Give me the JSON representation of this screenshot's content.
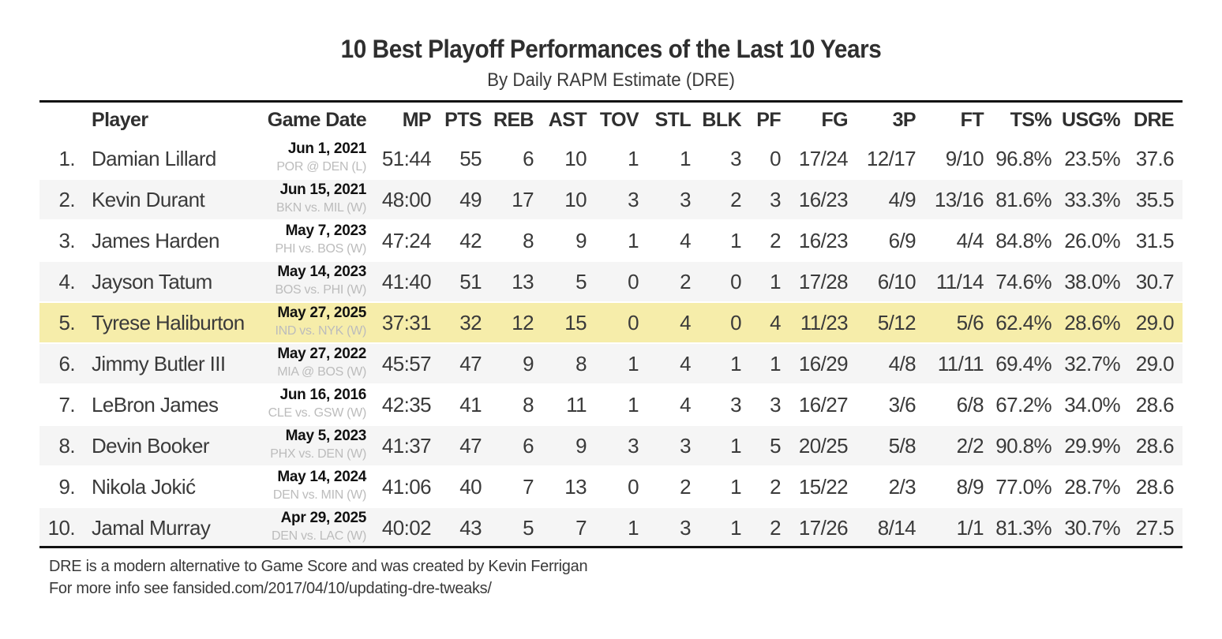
{
  "title": "10 Best Playoff Performances of the Last 10 Years",
  "subtitle": "By Daily RAPM Estimate (DRE)",
  "columns": {
    "player": "Player",
    "game_date": "Game Date",
    "mp": "MP",
    "pts": "PTS",
    "reb": "REB",
    "ast": "AST",
    "tov": "TOV",
    "stl": "STL",
    "blk": "BLK",
    "pf": "PF",
    "fg": "FG",
    "threep": "3P",
    "ft": "FT",
    "ts": "TS%",
    "usg": "USG%",
    "dre": "DRE"
  },
  "colors": {
    "highlight": "#f6edaa",
    "stripe": "#f5f5f5",
    "rule": "#111111",
    "matchup_text": "#bcbcbc"
  },
  "chart_data": {
    "type": "table",
    "title": "10 Best Playoff Performances of the Last 10 Years",
    "subtitle": "By Daily RAPM Estimate (DRE)",
    "highlighted_row": 5,
    "rows": [
      {
        "rank": "1.",
        "player": "Damian Lillard",
        "date": "Jun 1, 2021",
        "matchup": "POR @ DEN (L)",
        "mp": "51:44",
        "pts": "55",
        "reb": "6",
        "ast": "10",
        "tov": "1",
        "stl": "1",
        "blk": "3",
        "pf": "0",
        "fg": "17/24",
        "threep": "12/17",
        "ft": "9/10",
        "ts": "96.8%",
        "usg": "23.5%",
        "dre": "37.6"
      },
      {
        "rank": "2.",
        "player": "Kevin Durant",
        "date": "Jun 15, 2021",
        "matchup": "BKN vs. MIL (W)",
        "mp": "48:00",
        "pts": "49",
        "reb": "17",
        "ast": "10",
        "tov": "3",
        "stl": "3",
        "blk": "2",
        "pf": "3",
        "fg": "16/23",
        "threep": "4/9",
        "ft": "13/16",
        "ts": "81.6%",
        "usg": "33.3%",
        "dre": "35.5"
      },
      {
        "rank": "3.",
        "player": "James Harden",
        "date": "May 7, 2023",
        "matchup": "PHI vs. BOS (W)",
        "mp": "47:24",
        "pts": "42",
        "reb": "8",
        "ast": "9",
        "tov": "1",
        "stl": "4",
        "blk": "1",
        "pf": "2",
        "fg": "16/23",
        "threep": "6/9",
        "ft": "4/4",
        "ts": "84.8%",
        "usg": "26.0%",
        "dre": "31.5"
      },
      {
        "rank": "4.",
        "player": "Jayson Tatum",
        "date": "May 14, 2023",
        "matchup": "BOS vs. PHI (W)",
        "mp": "41:40",
        "pts": "51",
        "reb": "13",
        "ast": "5",
        "tov": "0",
        "stl": "2",
        "blk": "0",
        "pf": "1",
        "fg": "17/28",
        "threep": "6/10",
        "ft": "11/14",
        "ts": "74.6%",
        "usg": "38.0%",
        "dre": "30.7"
      },
      {
        "rank": "5.",
        "player": "Tyrese Haliburton",
        "date": "May 27, 2025",
        "matchup": "IND vs. NYK (W)",
        "mp": "37:31",
        "pts": "32",
        "reb": "12",
        "ast": "15",
        "tov": "0",
        "stl": "4",
        "blk": "0",
        "pf": "4",
        "fg": "11/23",
        "threep": "5/12",
        "ft": "5/6",
        "ts": "62.4%",
        "usg": "28.6%",
        "dre": "29.0"
      },
      {
        "rank": "6.",
        "player": "Jimmy Butler III",
        "date": "May 27, 2022",
        "matchup": "MIA @ BOS (W)",
        "mp": "45:57",
        "pts": "47",
        "reb": "9",
        "ast": "8",
        "tov": "1",
        "stl": "4",
        "blk": "1",
        "pf": "1",
        "fg": "16/29",
        "threep": "4/8",
        "ft": "11/11",
        "ts": "69.4%",
        "usg": "32.7%",
        "dre": "29.0"
      },
      {
        "rank": "7.",
        "player": "LeBron James",
        "date": "Jun 16, 2016",
        "matchup": "CLE vs. GSW (W)",
        "mp": "42:35",
        "pts": "41",
        "reb": "8",
        "ast": "11",
        "tov": "1",
        "stl": "4",
        "blk": "3",
        "pf": "3",
        "fg": "16/27",
        "threep": "3/6",
        "ft": "6/8",
        "ts": "67.2%",
        "usg": "34.0%",
        "dre": "28.6"
      },
      {
        "rank": "8.",
        "player": "Devin Booker",
        "date": "May 5, 2023",
        "matchup": "PHX vs. DEN (W)",
        "mp": "41:37",
        "pts": "47",
        "reb": "6",
        "ast": "9",
        "tov": "3",
        "stl": "3",
        "blk": "1",
        "pf": "5",
        "fg": "20/25",
        "threep": "5/8",
        "ft": "2/2",
        "ts": "90.8%",
        "usg": "29.9%",
        "dre": "28.6"
      },
      {
        "rank": "9.",
        "player": "Nikola Jokić",
        "date": "May 14, 2024",
        "matchup": "DEN vs. MIN (W)",
        "mp": "41:06",
        "pts": "40",
        "reb": "7",
        "ast": "13",
        "tov": "0",
        "stl": "2",
        "blk": "1",
        "pf": "2",
        "fg": "15/22",
        "threep": "2/3",
        "ft": "8/9",
        "ts": "77.0%",
        "usg": "28.7%",
        "dre": "28.6"
      },
      {
        "rank": "10.",
        "player": "Jamal Murray",
        "date": "Apr 29, 2025",
        "matchup": "DEN vs. LAC (W)",
        "mp": "40:02",
        "pts": "43",
        "reb": "5",
        "ast": "7",
        "tov": "1",
        "stl": "3",
        "blk": "1",
        "pf": "2",
        "fg": "17/26",
        "threep": "8/14",
        "ft": "1/1",
        "ts": "81.3%",
        "usg": "30.7%",
        "dre": "27.5"
      }
    ]
  },
  "footnotes": {
    "line1": "DRE is a modern alternative to Game Score and was created by Kevin Ferrigan",
    "line2": "For more info see fansided.com/2017/04/10/updating-dre-tweaks/"
  }
}
